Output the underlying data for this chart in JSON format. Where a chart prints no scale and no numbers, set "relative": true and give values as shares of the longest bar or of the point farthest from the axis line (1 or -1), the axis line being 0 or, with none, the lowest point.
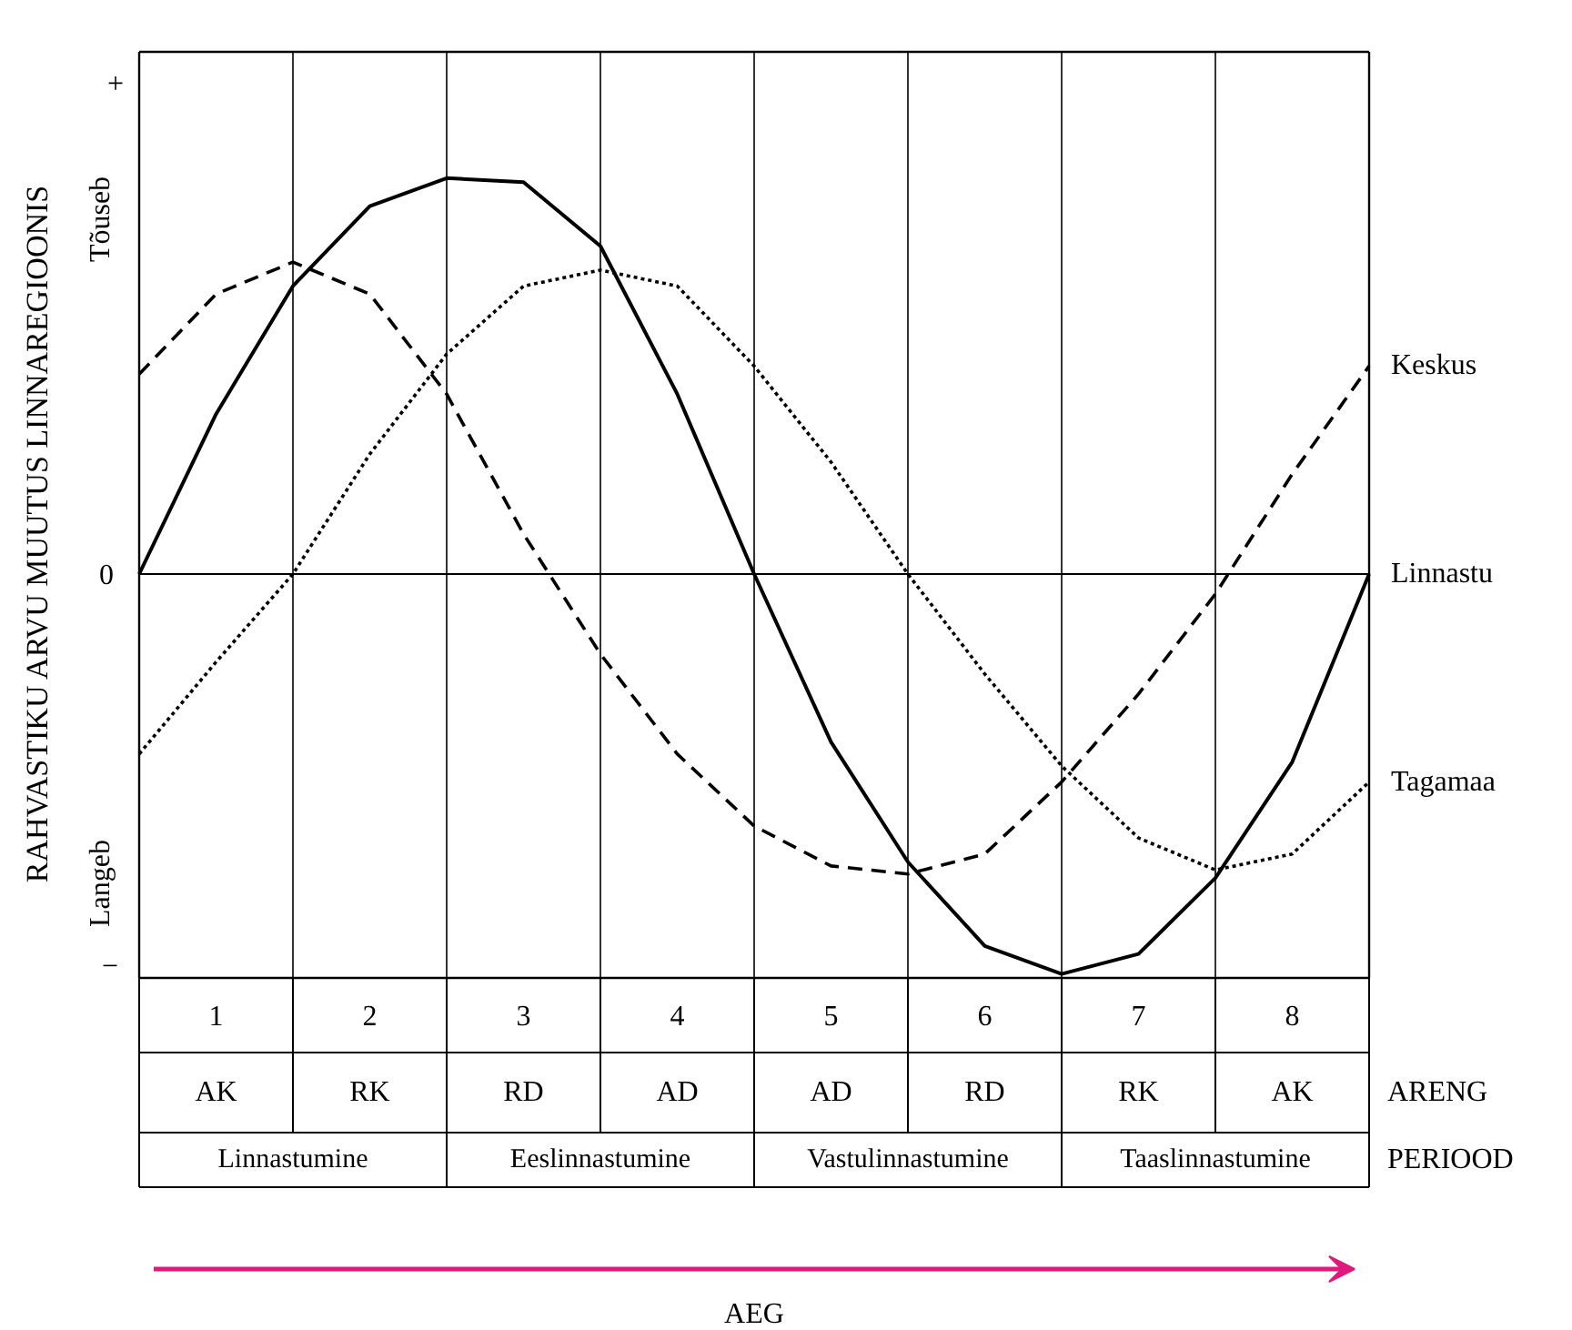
{
  "chart_data": {
    "type": "line",
    "relative": true,
    "ylabel": "RAHVASTIKU ARVU MUUTUS LINNAREGIOONIS",
    "legend": false,
    "grid": "x",
    "categories": [
      null,
      null,
      null,
      null,
      null,
      null,
      null,
      null,
      null,
      null,
      null,
      null,
      null,
      null,
      null,
      null,
      null
    ],
    "series": [
      {
        "name": "Keskus",
        "color": "#000000",
        "line_style": "dashed",
        "values": [
          0.5,
          0.7,
          0.78,
          0.7,
          0.45,
          0.1,
          -0.2,
          -0.45,
          -0.63,
          -0.73,
          -0.75,
          -0.7,
          -0.52,
          -0.3,
          -0.05,
          0.25,
          0.52
        ]
      },
      {
        "name": "Linnastu",
        "color": "#000000",
        "line_style": "solid",
        "values": [
          0,
          0.4,
          0.72,
          0.92,
          0.99,
          0.98,
          0.82,
          0.45,
          0,
          -0.42,
          -0.72,
          -0.93,
          -1,
          -0.95,
          -0.76,
          -0.47,
          0
        ]
      },
      {
        "name": "Tagamaa",
        "color": "#000000",
        "line_style": "dotted",
        "values": [
          -0.45,
          -0.22,
          0,
          0.3,
          0.55,
          0.72,
          0.76,
          0.72,
          0.52,
          0.28,
          0,
          -0.25,
          -0.48,
          -0.66,
          -0.74,
          -0.7,
          -0.52
        ]
      }
    ],
    "annotations": [
      "+",
      "Tõuseb",
      "0",
      "Langeb",
      "−",
      "1",
      "2",
      "3",
      "4",
      "5",
      "6",
      "7",
      "8",
      "AK",
      "RK",
      "RD",
      "AD",
      "AD",
      "RD",
      "RK",
      "AK",
      "ARENG",
      "Linnastumine",
      "Eeslinnastumine",
      "Vastulinnastumine",
      "Taaslinnastumine",
      "PERIOOD",
      "AEG"
    ]
  }
}
